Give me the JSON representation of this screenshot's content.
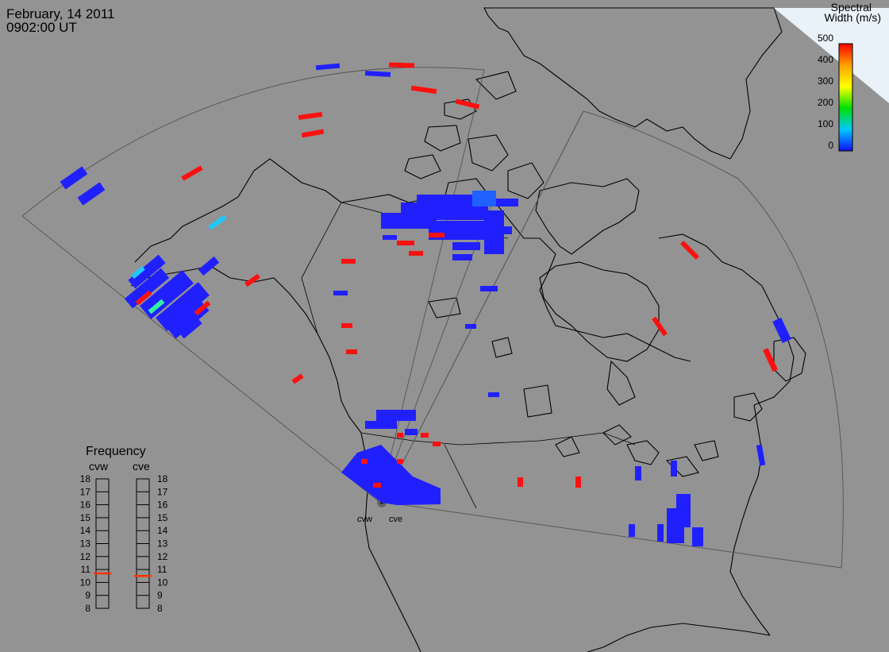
{
  "header": {
    "date": "February, 14 2011",
    "time": "0902:00 UT"
  },
  "colorbar": {
    "title_line1": "Spectral",
    "title_line2": "Width (m/s)",
    "ticks": [
      "500",
      "400",
      "300",
      "200",
      "100",
      "0"
    ],
    "colors": [
      "#ff0000",
      "#ffa500",
      "#ffff00",
      "#00d000",
      "#00e0ff",
      "#0000ff"
    ]
  },
  "radars": {
    "west": "cvw",
    "east": "cve"
  },
  "frequency": {
    "title": "Frequency",
    "left_label": "cvw",
    "right_label": "cve",
    "scale": [
      "18",
      "17",
      "16",
      "15",
      "14",
      "13",
      "12",
      "11",
      "10",
      "9",
      "8"
    ],
    "cvw_value": 10.7,
    "cve_value": 10.5,
    "marker_color": "#ff3300"
  },
  "colors": {
    "background": "#939393",
    "land_line": "#000000",
    "fov_line": "#5a5a5a",
    "scatter_low": "#2020ff",
    "scatter_high": "#ff1010"
  }
}
